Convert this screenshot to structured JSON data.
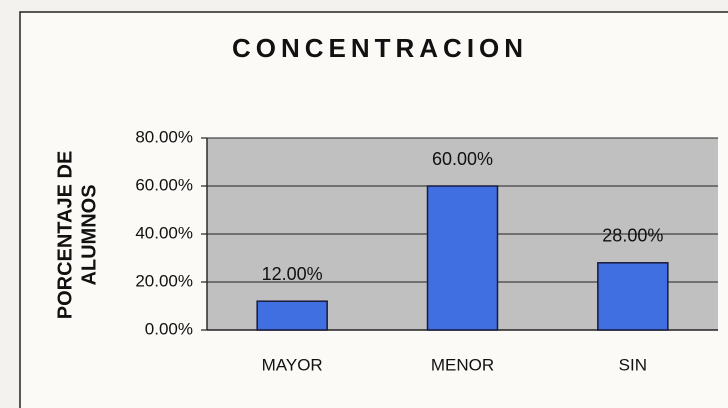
{
  "chart_data": {
    "type": "bar",
    "title": "CONCENTRACION",
    "ylabel": [
      "PORCENTAJE DE",
      "ALUMNOS"
    ],
    "categories": [
      "MAYOR",
      "MENOR",
      "SIN"
    ],
    "values": [
      12,
      60,
      28
    ],
    "value_labels": [
      "12.00%",
      "60.00%",
      "28.00%"
    ],
    "color": "#3f6fe0",
    "ylim": [
      0,
      80
    ],
    "yticks": [
      {
        "value": 0,
        "label": "0.00%"
      },
      {
        "value": 20,
        "label": "20.00%"
      },
      {
        "value": 40,
        "label": "40.00%"
      },
      {
        "value": 60,
        "label": "60.00%"
      },
      {
        "value": 80,
        "label": "80.00%"
      }
    ],
    "grid": true
  }
}
